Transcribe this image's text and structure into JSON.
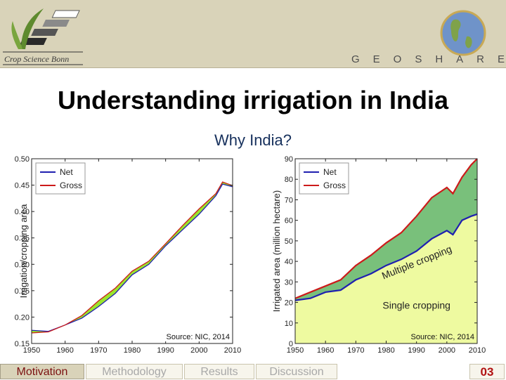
{
  "header": {
    "logo_text": "Crop Science Bonn",
    "brand": "GEOSHARE"
  },
  "slide": {
    "title": "Understanding irrigation in India",
    "subtitle": "Why India?"
  },
  "footer": {
    "tabs": [
      {
        "label": "Motivation",
        "active": true
      },
      {
        "label": "Methodology",
        "active": false
      },
      {
        "label": "Results",
        "active": false
      },
      {
        "label": "Discussion",
        "active": false
      }
    ],
    "page": "03"
  },
  "colors": {
    "net": "#1f1fb0",
    "gross": "#cc1a1a",
    "multiple_fill": "#79c07b",
    "single_fill": "#eefaa0",
    "accent_red": "#b11212"
  },
  "chart_data": [
    {
      "type": "line",
      "title": "",
      "xlabel": "",
      "ylabel": "Irrigation/cropping area",
      "xlim": [
        1950,
        2010
      ],
      "ylim": [
        0.15,
        0.5
      ],
      "xticks": [
        1950,
        1960,
        1970,
        1980,
        1990,
        2000,
        2010
      ],
      "yticks": [
        0.15,
        0.2,
        0.25,
        0.3,
        0.35,
        0.4,
        0.45,
        0.5
      ],
      "legend": "top-left",
      "source": "Source: NIC, 2014",
      "x": [
        1950,
        1955,
        1960,
        1965,
        1970,
        1975,
        1980,
        1985,
        1990,
        1995,
        2000,
        2005,
        2007,
        2010
      ],
      "series": [
        {
          "name": "Net",
          "values": [
            0.175,
            0.173,
            0.185,
            0.198,
            0.22,
            0.245,
            0.28,
            0.3,
            0.335,
            0.365,
            0.395,
            0.43,
            0.452,
            0.447
          ]
        },
        {
          "name": "Gross",
          "values": [
            0.17,
            0.172,
            0.185,
            0.203,
            0.231,
            0.255,
            0.287,
            0.306,
            0.339,
            0.373,
            0.405,
            0.434,
            0.456,
            0.449
          ]
        }
      ]
    },
    {
      "type": "area",
      "title": "",
      "xlabel": "",
      "ylabel": "Irrigated area (million hectare)",
      "xlim": [
        1950,
        2010
      ],
      "ylim": [
        0,
        90
      ],
      "xticks": [
        1950,
        1960,
        1970,
        1980,
        1990,
        2000,
        2010
      ],
      "yticks": [
        0,
        10,
        20,
        30,
        40,
        50,
        60,
        70,
        80,
        90
      ],
      "legend": "top-left",
      "source": "Source: NIC, 2014",
      "annotations": [
        "Multiple cropping",
        "Single cropping"
      ],
      "x": [
        1950,
        1955,
        1960,
        1965,
        1970,
        1975,
        1980,
        1985,
        1990,
        1995,
        2000,
        2002,
        2005,
        2008,
        2010
      ],
      "series": [
        {
          "name": "Net",
          "values": [
            21,
            22,
            25,
            26,
            31,
            34,
            38,
            41,
            45,
            51,
            55,
            53,
            60,
            62,
            63
          ]
        },
        {
          "name": "Gross",
          "values": [
            22,
            25,
            28,
            31,
            38,
            43,
            49,
            54,
            62,
            71,
            76,
            73,
            81,
            87,
            90
          ]
        }
      ]
    }
  ]
}
